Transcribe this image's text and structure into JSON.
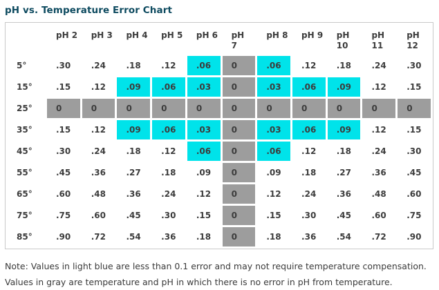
{
  "title": "pH vs. Temperature Error Chart",
  "note": "Note: Values in light blue are less than 0.1 error and may not require temperature compensation. Values in gray are temperature and pH in which there is no error in pH from temperature.",
  "colors": {
    "light_blue_highlight": "#00e3ea",
    "gray_highlight": "#9d9d9d",
    "title_teal": "#0d4a5f",
    "table_border": "#c9c9c9",
    "cell_text": "#3c3c3c"
  },
  "table": {
    "corner_label": "",
    "columns": [
      {
        "label": "pH 2",
        "wrap": false
      },
      {
        "label": "pH 3",
        "wrap": false
      },
      {
        "label": "pH 4",
        "wrap": false
      },
      {
        "label": "pH 5",
        "wrap": false
      },
      {
        "label": "pH 6",
        "wrap": false
      },
      {
        "label": "pH 7",
        "wrap": true
      },
      {
        "label": "pH 8",
        "wrap": false
      },
      {
        "label": "pH 9",
        "wrap": false
      },
      {
        "label": "pH 10",
        "wrap": true
      },
      {
        "label": "pH 11",
        "wrap": true
      },
      {
        "label": "pH 12",
        "wrap": true
      }
    ],
    "rows": [
      {
        "label": "5°",
        "cells": [
          {
            "value": ".30",
            "style": "plain"
          },
          {
            "value": ".24",
            "style": "plain"
          },
          {
            "value": ".18",
            "style": "plain"
          },
          {
            "value": ".12",
            "style": "plain"
          },
          {
            "value": ".06",
            "style": "low"
          },
          {
            "value": "0",
            "style": "zero"
          },
          {
            "value": ".06",
            "style": "low"
          },
          {
            "value": ".12",
            "style": "plain"
          },
          {
            "value": ".18",
            "style": "plain"
          },
          {
            "value": ".24",
            "style": "plain"
          },
          {
            "value": ".30",
            "style": "plain"
          }
        ]
      },
      {
        "label": "15°",
        "cells": [
          {
            "value": ".15",
            "style": "plain"
          },
          {
            "value": ".12",
            "style": "plain"
          },
          {
            "value": ".09",
            "style": "low"
          },
          {
            "value": ".06",
            "style": "low"
          },
          {
            "value": ".03",
            "style": "low"
          },
          {
            "value": "0",
            "style": "zero"
          },
          {
            "value": ".03",
            "style": "low"
          },
          {
            "value": ".06",
            "style": "low"
          },
          {
            "value": ".09",
            "style": "low"
          },
          {
            "value": ".12",
            "style": "plain"
          },
          {
            "value": ".15",
            "style": "plain"
          }
        ]
      },
      {
        "label": "25°",
        "cells": [
          {
            "value": "0",
            "style": "zero"
          },
          {
            "value": "0",
            "style": "zero"
          },
          {
            "value": "0",
            "style": "zero"
          },
          {
            "value": "0",
            "style": "zero"
          },
          {
            "value": "0",
            "style": "zero"
          },
          {
            "value": "0",
            "style": "zero"
          },
          {
            "value": "0",
            "style": "zero"
          },
          {
            "value": "0",
            "style": "zero"
          },
          {
            "value": "0",
            "style": "zero"
          },
          {
            "value": "0",
            "style": "zero"
          },
          {
            "value": "0",
            "style": "zero"
          }
        ]
      },
      {
        "label": "35°",
        "cells": [
          {
            "value": ".15",
            "style": "plain"
          },
          {
            "value": ".12",
            "style": "plain"
          },
          {
            "value": ".09",
            "style": "low"
          },
          {
            "value": ".06",
            "style": "low"
          },
          {
            "value": ".03",
            "style": "low"
          },
          {
            "value": "0",
            "style": "zero"
          },
          {
            "value": ".03",
            "style": "low"
          },
          {
            "value": ".06",
            "style": "low"
          },
          {
            "value": ".09",
            "style": "low"
          },
          {
            "value": ".12",
            "style": "plain"
          },
          {
            "value": ".15",
            "style": "plain"
          }
        ]
      },
      {
        "label": "45°",
        "cells": [
          {
            "value": ".30",
            "style": "plain"
          },
          {
            "value": ".24",
            "style": "plain"
          },
          {
            "value": ".18",
            "style": "plain"
          },
          {
            "value": ".12",
            "style": "plain"
          },
          {
            "value": ".06",
            "style": "low"
          },
          {
            "value": "0",
            "style": "zero"
          },
          {
            "value": ".06",
            "style": "low"
          },
          {
            "value": ".12",
            "style": "plain"
          },
          {
            "value": ".18",
            "style": "plain"
          },
          {
            "value": ".24",
            "style": "plain"
          },
          {
            "value": ".30",
            "style": "plain"
          }
        ]
      },
      {
        "label": "55°",
        "cells": [
          {
            "value": ".45",
            "style": "plain"
          },
          {
            "value": ".36",
            "style": "plain"
          },
          {
            "value": ".27",
            "style": "plain"
          },
          {
            "value": ".18",
            "style": "plain"
          },
          {
            "value": ".09",
            "style": "plain"
          },
          {
            "value": "0",
            "style": "zero"
          },
          {
            "value": ".09",
            "style": "plain"
          },
          {
            "value": ".18",
            "style": "plain"
          },
          {
            "value": ".27",
            "style": "plain"
          },
          {
            "value": ".36",
            "style": "plain"
          },
          {
            "value": ".45",
            "style": "plain"
          }
        ]
      },
      {
        "label": "65°",
        "cells": [
          {
            "value": ".60",
            "style": "plain"
          },
          {
            "value": ".48",
            "style": "plain"
          },
          {
            "value": ".36",
            "style": "plain"
          },
          {
            "value": ".24",
            "style": "plain"
          },
          {
            "value": ".12",
            "style": "plain"
          },
          {
            "value": "0",
            "style": "zero"
          },
          {
            "value": ".12",
            "style": "plain"
          },
          {
            "value": ".24",
            "style": "plain"
          },
          {
            "value": ".36",
            "style": "plain"
          },
          {
            "value": ".48",
            "style": "plain"
          },
          {
            "value": ".60",
            "style": "plain"
          }
        ]
      },
      {
        "label": "75°",
        "cells": [
          {
            "value": ".75",
            "style": "plain"
          },
          {
            "value": ".60",
            "style": "plain"
          },
          {
            "value": ".45",
            "style": "plain"
          },
          {
            "value": ".30",
            "style": "plain"
          },
          {
            "value": ".15",
            "style": "plain"
          },
          {
            "value": "0",
            "style": "zero"
          },
          {
            "value": ".15",
            "style": "plain"
          },
          {
            "value": ".30",
            "style": "plain"
          },
          {
            "value": ".45",
            "style": "plain"
          },
          {
            "value": ".60",
            "style": "plain"
          },
          {
            "value": ".75",
            "style": "plain"
          }
        ]
      },
      {
        "label": "85°",
        "cells": [
          {
            "value": ".90",
            "style": "plain"
          },
          {
            "value": ".72",
            "style": "plain"
          },
          {
            "value": ".54",
            "style": "plain"
          },
          {
            "value": ".36",
            "style": "plain"
          },
          {
            "value": ".18",
            "style": "plain"
          },
          {
            "value": "0",
            "style": "zero"
          },
          {
            "value": ".18",
            "style": "plain"
          },
          {
            "value": ".36",
            "style": "plain"
          },
          {
            "value": ".54",
            "style": "plain"
          },
          {
            "value": ".72",
            "style": "plain"
          },
          {
            "value": ".90",
            "style": "plain"
          }
        ]
      }
    ]
  },
  "chart_data": {
    "type": "table",
    "title": "pH vs. Temperature Error Chart",
    "columns": [
      "pH 2",
      "pH 3",
      "pH 4",
      "pH 5",
      "pH 6",
      "pH 7",
      "pH 8",
      "pH 9",
      "pH 10",
      "pH 11",
      "pH 12"
    ],
    "rows": [
      "5°",
      "15°",
      "25°",
      "35°",
      "45°",
      "55°",
      "65°",
      "75°",
      "85°"
    ],
    "values": [
      [
        0.3,
        0.24,
        0.18,
        0.12,
        0.06,
        0,
        0.06,
        0.12,
        0.18,
        0.24,
        0.3
      ],
      [
        0.15,
        0.12,
        0.09,
        0.06,
        0.03,
        0,
        0.03,
        0.06,
        0.09,
        0.12,
        0.15
      ],
      [
        0,
        0,
        0,
        0,
        0,
        0,
        0,
        0,
        0,
        0,
        0
      ],
      [
        0.15,
        0.12,
        0.09,
        0.06,
        0.03,
        0,
        0.03,
        0.06,
        0.09,
        0.12,
        0.15
      ],
      [
        0.3,
        0.24,
        0.18,
        0.12,
        0.06,
        0,
        0.06,
        0.12,
        0.18,
        0.24,
        0.3
      ],
      [
        0.45,
        0.36,
        0.27,
        0.18,
        0.09,
        0,
        0.09,
        0.18,
        0.27,
        0.36,
        0.45
      ],
      [
        0.6,
        0.48,
        0.36,
        0.24,
        0.12,
        0,
        0.12,
        0.24,
        0.36,
        0.48,
        0.6
      ],
      [
        0.75,
        0.6,
        0.45,
        0.3,
        0.15,
        0,
        0.15,
        0.3,
        0.45,
        0.6,
        0.75
      ],
      [
        0.9,
        0.72,
        0.54,
        0.36,
        0.18,
        0,
        0.18,
        0.36,
        0.54,
        0.72,
        0.9
      ]
    ],
    "legend": {
      "light_blue": "error less than 0.1, may not require temperature compensation",
      "gray": "no error in pH from temperature"
    }
  }
}
